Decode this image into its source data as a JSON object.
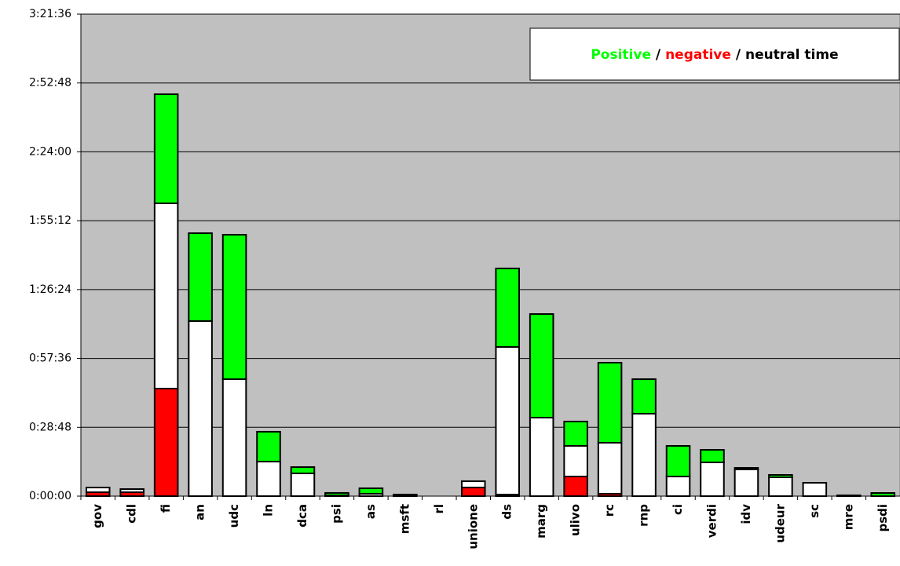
{
  "chart_data": {
    "type": "stacked_bar",
    "categories": [
      "gov",
      "cdl",
      "fi",
      "an",
      "udc",
      "ln",
      "dca",
      "psi",
      "as",
      "msft",
      "rl",
      "unione",
      "ds",
      "marg",
      "ulivo",
      "rc",
      "rnp",
      "ci",
      "verdi",
      "idv",
      "udeur",
      "sc",
      "mre",
      "psdi"
    ],
    "series": [
      {
        "name": "Positive",
        "color": "#00ff00",
        "values": [
          0,
          0,
          2738,
          2206,
          3625,
          749,
          158,
          60,
          138,
          0,
          0,
          0,
          1970,
          2600,
          611,
          2009,
          867,
          768,
          315,
          39,
          59,
          0,
          0,
          79
        ]
      },
      {
        "name": "negative",
        "color": "#ff0000",
        "values": [
          98,
          98,
          2699,
          0,
          0,
          0,
          0,
          0,
          0,
          0,
          0,
          217,
          40,
          0,
          493,
          59,
          0,
          0,
          0,
          0,
          0,
          0,
          0,
          0
        ]
      },
      {
        "name": "neutral time",
        "color": "#ffffff",
        "values": [
          118,
          79,
          4649,
          4393,
          2935,
          867,
          571,
          20,
          59,
          40,
          0,
          158,
          3704,
          1970,
          768,
          1281,
          2069,
          493,
          847,
          670,
          473,
          335,
          20,
          0
        ]
      }
    ],
    "legend_separator": "/",
    "ylim": [
      0,
      12096
    ],
    "yticks": [
      {
        "value": 0,
        "label": "0:00:00"
      },
      {
        "value": 1728,
        "label": "0:28:48"
      },
      {
        "value": 3456,
        "label": "0:57:36"
      },
      {
        "value": 5184,
        "label": "1:26:24"
      },
      {
        "value": 6912,
        "label": "1:55:12"
      },
      {
        "value": 8640,
        "label": "2:24:00"
      },
      {
        "value": 10368,
        "label": "2:52:48"
      },
      {
        "value": 12096,
        "label": "3:21:36"
      }
    ],
    "grid": true
  }
}
